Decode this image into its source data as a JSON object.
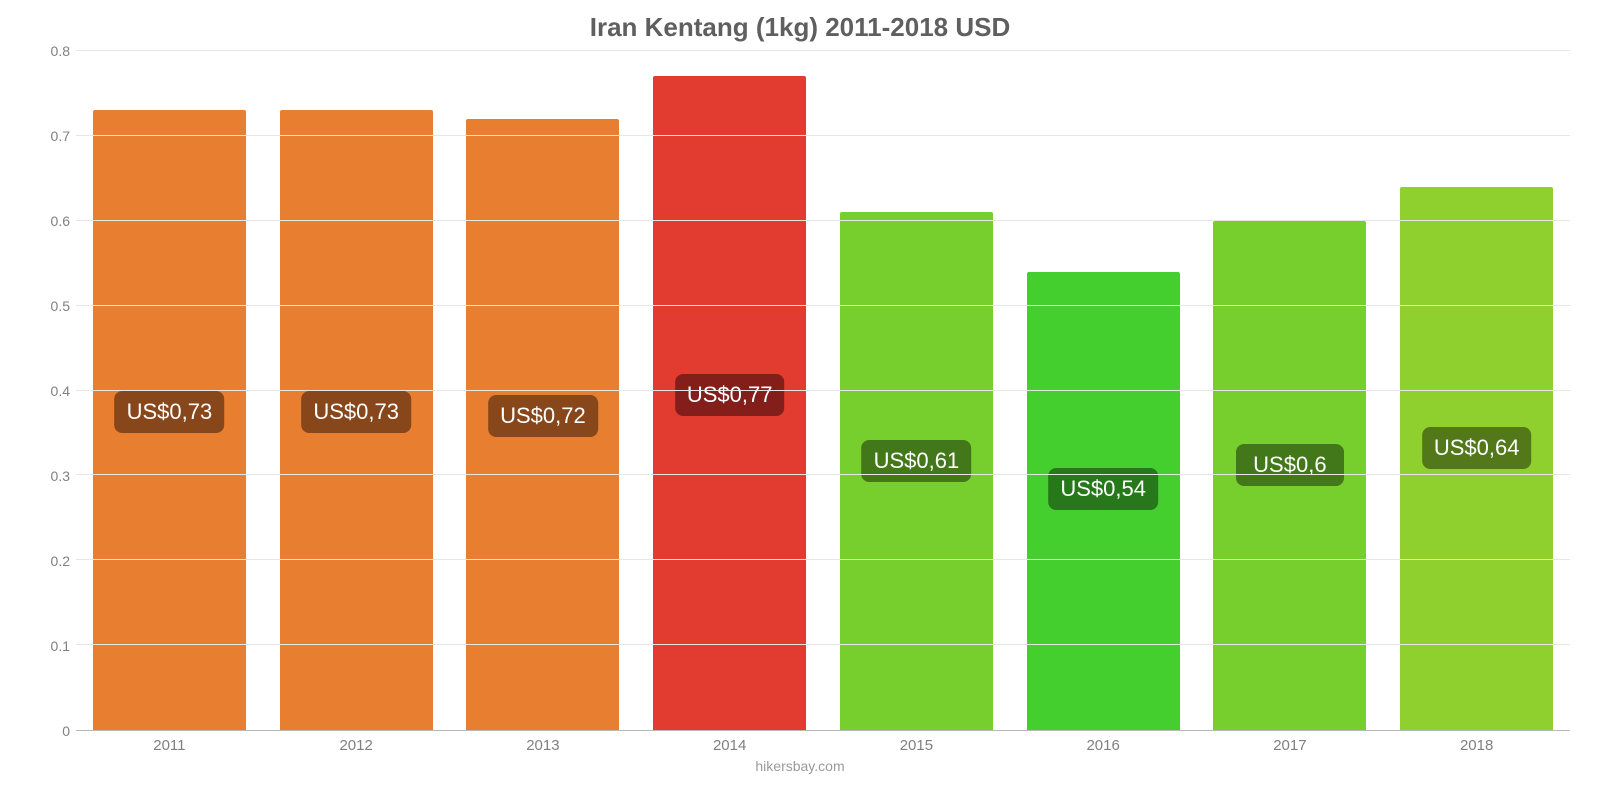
{
  "chart": {
    "type": "bar",
    "title": "Iran Kentang (1kg) 2011-2018 USD",
    "title_color": "#5f5f5f",
    "title_fontsize": 26,
    "background_color": "#ffffff",
    "grid_color": "#e6e6e6",
    "axis_line_color": "#b7b7b7",
    "tick_color": "#808080",
    "tick_fontsize": 14,
    "bar_width_pct": 82,
    "yaxis": {
      "min": 0,
      "max": 0.8,
      "step": 0.1,
      "ticks": [
        "0",
        "0.1",
        "0.2",
        "0.3",
        "0.4",
        "0.5",
        "0.6",
        "0.7",
        "0.8"
      ]
    },
    "badge": {
      "offset_pct": 48,
      "fontsize": 22,
      "radius": 8,
      "text_color": "#ffffff"
    },
    "data": [
      {
        "category": "2011",
        "value": 0.73,
        "label": "US$0,73",
        "bar_color": "#e77e30",
        "badge_color": "#87471a"
      },
      {
        "category": "2012",
        "value": 0.73,
        "label": "US$0,73",
        "bar_color": "#e77e30",
        "badge_color": "#87471a"
      },
      {
        "category": "2013",
        "value": 0.72,
        "label": "US$0,72",
        "bar_color": "#e77e30",
        "badge_color": "#87471a"
      },
      {
        "category": "2014",
        "value": 0.77,
        "label": "US$0,77",
        "bar_color": "#e23b30",
        "badge_color": "#831e1a"
      },
      {
        "category": "2015",
        "value": 0.61,
        "label": "US$0,61",
        "bar_color": "#77cf2e",
        "badge_color": "#43781a"
      },
      {
        "category": "2016",
        "value": 0.54,
        "label": "US$0,54",
        "bar_color": "#44cf2e",
        "badge_color": "#26781a"
      },
      {
        "category": "2017",
        "value": 0.6,
        "label": "US$0,6",
        "bar_color": "#77cf2e",
        "badge_color": "#43781a"
      },
      {
        "category": "2018",
        "value": 0.64,
        "label": "US$0,64",
        "bar_color": "#8fcf2e",
        "badge_color": "#52781a"
      }
    ],
    "credit": "hikersbay.com",
    "credit_color": "#9a9a9a"
  }
}
